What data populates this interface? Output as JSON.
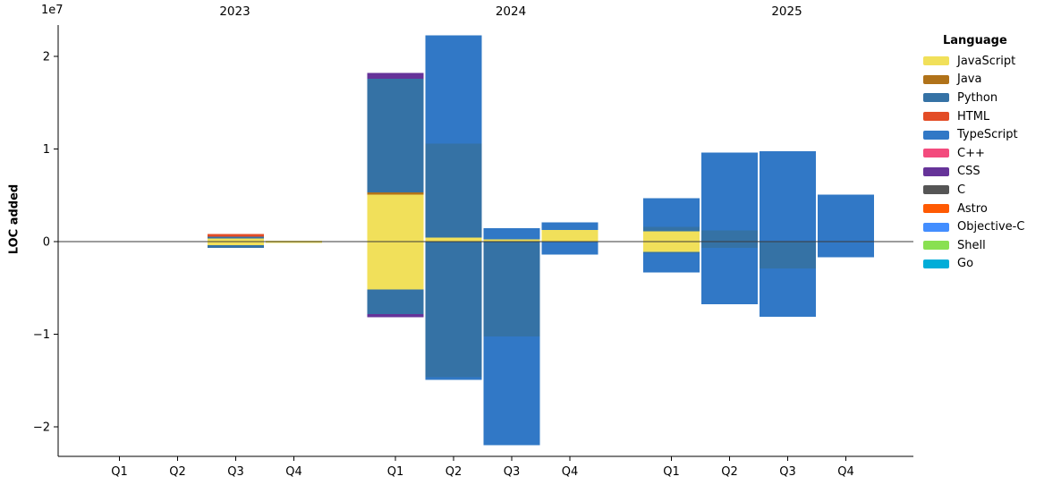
{
  "chart_data": {
    "type": "bar",
    "variant": "diverging-stacked",
    "title": "",
    "ylabel": "LOC added",
    "y_offset_text": "1e7",
    "ylim": [
      -23400000,
      23400000
    ],
    "grid": false,
    "legend_position": "right",
    "y_ticks": [
      {
        "value": 20000000,
        "label": "2"
      },
      {
        "value": 10000000,
        "label": "1"
      },
      {
        "value": 0,
        "label": "0"
      },
      {
        "value": -10000000,
        "label": "−1"
      },
      {
        "value": -20000000,
        "label": "−2"
      }
    ],
    "years": [
      "2023",
      "2024",
      "2025"
    ],
    "quarters": [
      "Q1",
      "Q2",
      "Q3",
      "Q4"
    ],
    "legend": {
      "title": "Language",
      "entries": [
        {
          "name": "JavaScript",
          "color": "#f1e05a"
        },
        {
          "name": "Java",
          "color": "#b07219"
        },
        {
          "name": "Python",
          "color": "#3572a5"
        },
        {
          "name": "HTML",
          "color": "#e34c26"
        },
        {
          "name": "TypeScript",
          "color": "#3178c6"
        },
        {
          "name": "C++",
          "color": "#f34b7d"
        },
        {
          "name": "CSS",
          "color": "#663399"
        },
        {
          "name": "C",
          "color": "#555555"
        },
        {
          "name": "Astro",
          "color": "#ff5a03"
        },
        {
          "name": "Objective-C",
          "color": "#438eff"
        },
        {
          "name": "Shell",
          "color": "#89e051"
        },
        {
          "name": "Go",
          "color": "#00add8"
        }
      ]
    },
    "bars": [
      {
        "year": "2023",
        "quarter": "Q1",
        "added": {},
        "removed": {}
      },
      {
        "year": "2023",
        "quarter": "Q2",
        "added": {},
        "removed": {}
      },
      {
        "year": "2023",
        "quarter": "Q3",
        "added": {
          "JavaScript": 360000,
          "Python": 190000,
          "HTML": 290000
        },
        "removed": {
          "JavaScript": -390000,
          "Python": -290000
        }
      },
      {
        "year": "2023",
        "quarter": "Q4",
        "added": {
          "JavaScript": 100000
        },
        "removed": {
          "JavaScript": -130000
        }
      },
      {
        "year": "2024",
        "quarter": "Q1",
        "added": {
          "JavaScript": 5090000,
          "Java": 220000,
          "Python": 12260000,
          "CSS": 640000
        },
        "removed": {
          "JavaScript": -5150000,
          "Python": -2680000,
          "CSS": -330000
        }
      },
      {
        "year": "2024",
        "quarter": "Q2",
        "added": {
          "JavaScript": 420000,
          "Python": 10150000,
          "TypeScript": 11690000
        },
        "removed": {
          "Python": -14660000,
          "TypeScript": -260000
        }
      },
      {
        "year": "2024",
        "quarter": "Q3",
        "added": {
          "JavaScript": 260000,
          "TypeScript": 1190000
        },
        "removed": {
          "Python": -10240000,
          "TypeScript": -11760000
        }
      },
      {
        "year": "2024",
        "quarter": "Q4",
        "added": {
          "JavaScript": 1280000,
          "TypeScript": 810000
        },
        "removed": {
          "TypeScript": -1380000
        }
      },
      {
        "year": "2025",
        "quarter": "Q1",
        "added": {
          "JavaScript": 1130000,
          "Python": 480000,
          "TypeScript": 3060000
        },
        "removed": {
          "JavaScript": -1130000,
          "Python": -150000,
          "TypeScript": -2030000
        }
      },
      {
        "year": "2025",
        "quarter": "Q2",
        "added": {
          "Python": 1230000,
          "TypeScript": 8360000
        },
        "removed": {
          "Python": -680000,
          "TypeScript": -6090000
        }
      },
      {
        "year": "2025",
        "quarter": "Q3",
        "added": {
          "TypeScript": 9760000
        },
        "removed": {
          "Python": -2900000,
          "TypeScript": -5220000
        }
      },
      {
        "year": "2025",
        "quarter": "Q4",
        "added": {
          "TypeScript": 5050000
        },
        "removed": {
          "TypeScript": -1710000
        }
      }
    ]
  }
}
